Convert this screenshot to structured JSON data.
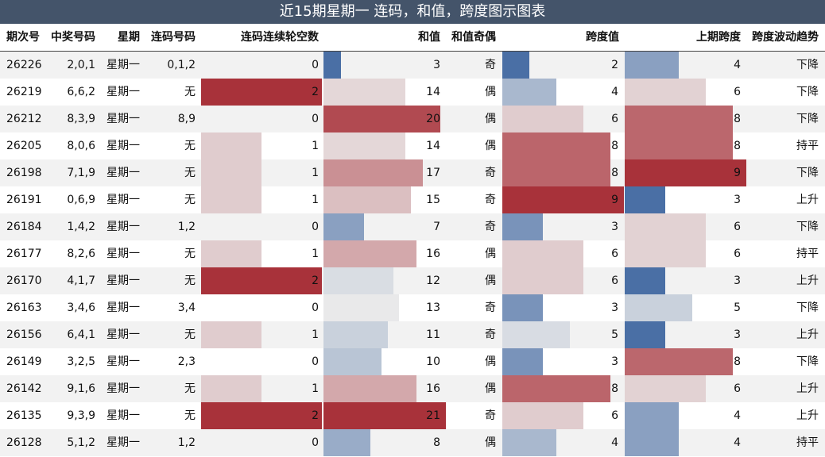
{
  "title": "近15期星期一 连码，和值，跨度图示图表",
  "headers": {
    "period": "期次号",
    "numbers": "中奖号码",
    "weekday": "星期",
    "consec": "连码号码",
    "gap": "连码连续轮空数",
    "sum": "和值",
    "parity": "和值奇偶",
    "span": "跨度值",
    "prev_span": "上期跨度",
    "trend": "跨度波动趋势"
  },
  "colors": {
    "header_bg": "#44546a",
    "low": "#4a6fa5",
    "mid": "#ebebeb",
    "high": "#a8323a",
    "stripe": "#f2f2f2"
  },
  "chart_data": {
    "type": "table",
    "title": "近15期星期一 连码，和值，跨度图示图表",
    "columns": [
      "期次号",
      "中奖号码",
      "星期",
      "连码号码",
      "连码连续轮空数",
      "和值",
      "和值奇偶",
      "跨度值",
      "上期跨度",
      "跨度波动趋势"
    ],
    "ranges": {
      "gap": [
        0,
        2
      ],
      "sum": [
        0,
        21
      ],
      "span": [
        0,
        9
      ],
      "prev_span": [
        0,
        9
      ]
    },
    "rows": [
      {
        "period": "26226",
        "numbers": "2,0,1",
        "weekday": "星期一",
        "consec": "0,1,2",
        "gap": 0,
        "sum": 3,
        "parity": "奇",
        "span": 2,
        "prev_span": 4,
        "trend": "下降"
      },
      {
        "period": "26219",
        "numbers": "6,6,2",
        "weekday": "星期一",
        "consec": "无",
        "gap": 2,
        "sum": 14,
        "parity": "偶",
        "span": 4,
        "prev_span": 6,
        "trend": "下降"
      },
      {
        "period": "26212",
        "numbers": "8,3,9",
        "weekday": "星期一",
        "consec": "8,9",
        "gap": 0,
        "sum": 20,
        "parity": "偶",
        "span": 6,
        "prev_span": 8,
        "trend": "下降"
      },
      {
        "period": "26205",
        "numbers": "8,0,6",
        "weekday": "星期一",
        "consec": "无",
        "gap": 1,
        "sum": 14,
        "parity": "偶",
        "span": 8,
        "prev_span": 8,
        "trend": "持平"
      },
      {
        "period": "26198",
        "numbers": "7,1,9",
        "weekday": "星期一",
        "consec": "无",
        "gap": 1,
        "sum": 17,
        "parity": "奇",
        "span": 8,
        "prev_span": 9,
        "trend": "下降"
      },
      {
        "period": "26191",
        "numbers": "0,6,9",
        "weekday": "星期一",
        "consec": "无",
        "gap": 1,
        "sum": 15,
        "parity": "奇",
        "span": 9,
        "prev_span": 3,
        "trend": "上升"
      },
      {
        "period": "26184",
        "numbers": "1,4,2",
        "weekday": "星期一",
        "consec": "1,2",
        "gap": 0,
        "sum": 7,
        "parity": "奇",
        "span": 3,
        "prev_span": 6,
        "trend": "下降"
      },
      {
        "period": "26177",
        "numbers": "8,2,6",
        "weekday": "星期一",
        "consec": "无",
        "gap": 1,
        "sum": 16,
        "parity": "偶",
        "span": 6,
        "prev_span": 6,
        "trend": "持平"
      },
      {
        "period": "26170",
        "numbers": "4,1,7",
        "weekday": "星期一",
        "consec": "无",
        "gap": 2,
        "sum": 12,
        "parity": "偶",
        "span": 6,
        "prev_span": 3,
        "trend": "上升"
      },
      {
        "period": "26163",
        "numbers": "3,4,6",
        "weekday": "星期一",
        "consec": "3,4",
        "gap": 0,
        "sum": 13,
        "parity": "奇",
        "span": 3,
        "prev_span": 5,
        "trend": "下降"
      },
      {
        "period": "26156",
        "numbers": "6,4,1",
        "weekday": "星期一",
        "consec": "无",
        "gap": 1,
        "sum": 11,
        "parity": "奇",
        "span": 5,
        "prev_span": 3,
        "trend": "上升"
      },
      {
        "period": "26149",
        "numbers": "3,2,5",
        "weekday": "星期一",
        "consec": "2,3",
        "gap": 0,
        "sum": 10,
        "parity": "偶",
        "span": 3,
        "prev_span": 8,
        "trend": "下降"
      },
      {
        "period": "26142",
        "numbers": "9,1,6",
        "weekday": "星期一",
        "consec": "无",
        "gap": 1,
        "sum": 16,
        "parity": "偶",
        "span": 8,
        "prev_span": 6,
        "trend": "上升"
      },
      {
        "period": "26135",
        "numbers": "9,3,9",
        "weekday": "星期一",
        "consec": "无",
        "gap": 2,
        "sum": 21,
        "parity": "奇",
        "span": 6,
        "prev_span": 4,
        "trend": "上升"
      },
      {
        "period": "26128",
        "numbers": "5,1,2",
        "weekday": "星期一",
        "consec": "1,2",
        "gap": 0,
        "sum": 8,
        "parity": "偶",
        "span": 4,
        "prev_span": 4,
        "trend": "持平"
      }
    ]
  }
}
